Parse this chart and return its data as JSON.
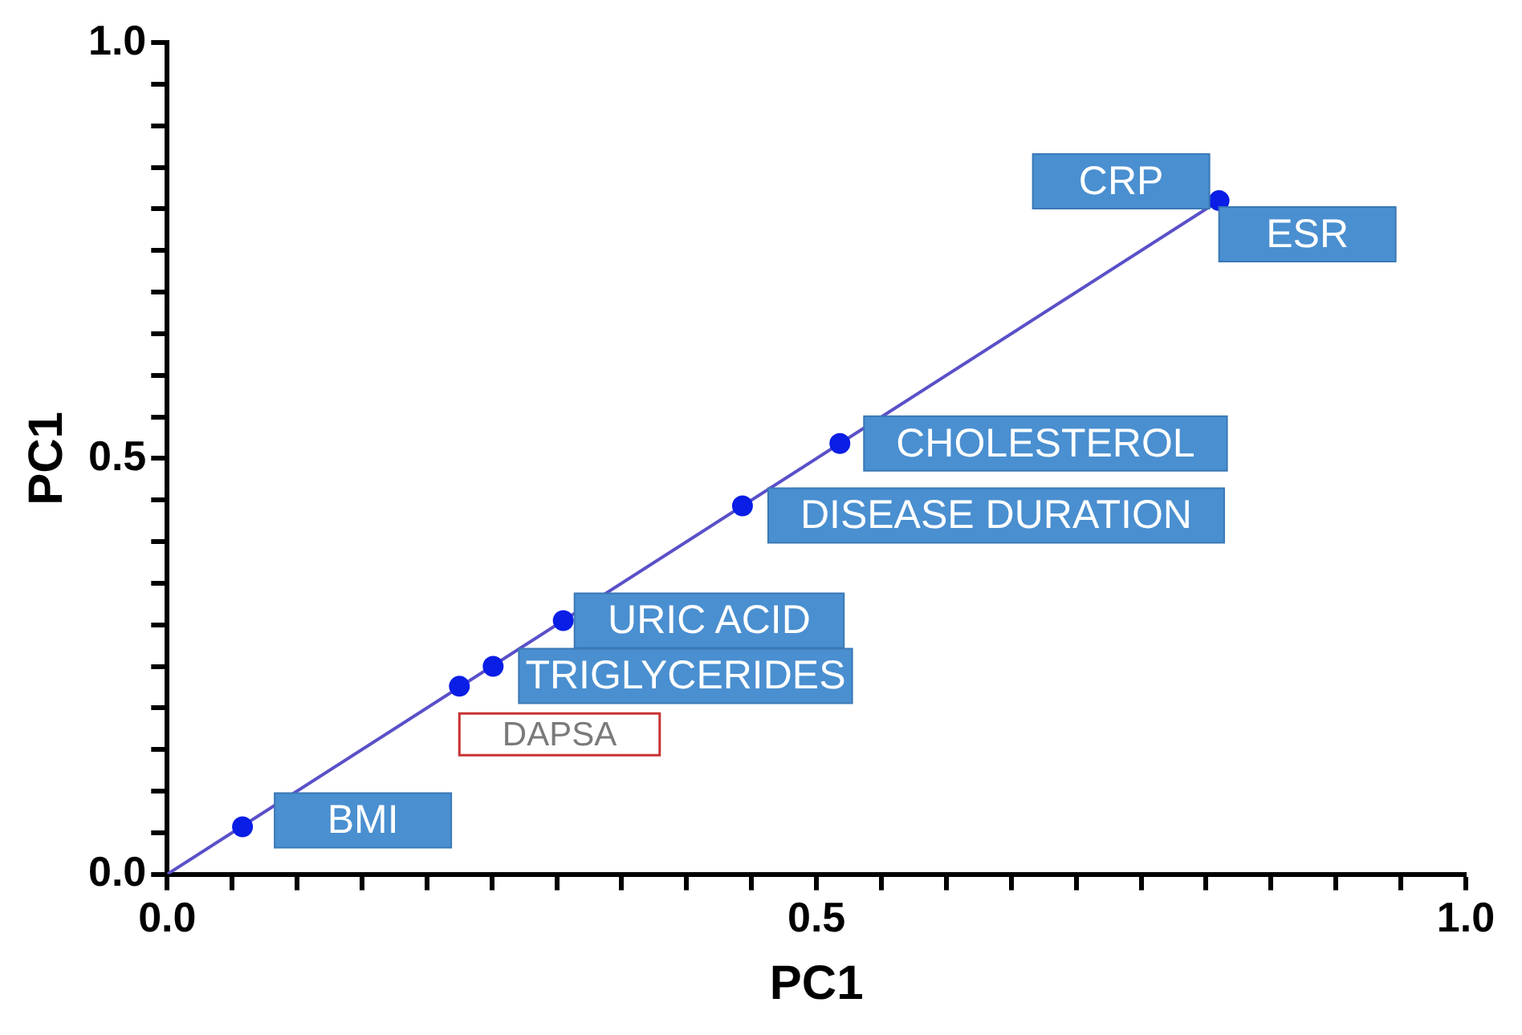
{
  "chart_data": {
    "type": "scatter",
    "xlabel": "PC1",
    "ylabel": "PC1",
    "series": [
      {
        "color": "#0a1ee6",
        "marker": "circle",
        "x": [
          0.058,
          0.225,
          0.251,
          0.305,
          0.443,
          0.518,
          0.81
        ],
        "values": [
          0.057,
          0.226,
          0.25,
          0.305,
          0.443,
          0.518,
          0.81
        ]
      },
      {
        "type": "line",
        "color": "#5a50c8",
        "x": [
          0,
          0.81
        ],
        "values": [
          0,
          0.81
        ]
      }
    ],
    "annotations": [
      {
        "text": "BMI",
        "x": 0.058,
        "y": 0.057
      },
      {
        "text": "DAPSA",
        "x": 0.225,
        "y": 0.226
      },
      {
        "text": "TRIGLYCERIDES",
        "x": 0.251,
        "y": 0.25
      },
      {
        "text": "URIC ACID",
        "x": 0.305,
        "y": 0.305
      },
      {
        "text": "DISEASE DURATION",
        "x": 0.443,
        "y": 0.443
      },
      {
        "text": "CHOLESTEROL",
        "x": 0.518,
        "y": 0.518
      },
      {
        "text": "CRP",
        "x": 0.81,
        "y": 0.81
      },
      {
        "text": "ESR",
        "x": 0.81,
        "y": 0.81
      }
    ],
    "xlim": [
      0,
      1
    ],
    "ylim": [
      0,
      1
    ],
    "xticks": [
      {
        "value": 0,
        "label": "0.0"
      },
      {
        "value": 0.05,
        "label": null
      },
      {
        "value": 0.1,
        "label": null
      },
      {
        "value": 0.15,
        "label": null
      },
      {
        "value": 0.2,
        "label": null
      },
      {
        "value": 0.25,
        "label": null
      },
      {
        "value": 0.3,
        "label": null
      },
      {
        "value": 0.35,
        "label": null
      },
      {
        "value": 0.4,
        "label": null
      },
      {
        "value": 0.45,
        "label": null
      },
      0.5,
      {
        "value": 0.55,
        "label": null
      },
      {
        "value": 0.6,
        "label": null
      },
      {
        "value": 0.65,
        "label": null
      },
      {
        "value": 0.7,
        "label": null
      },
      {
        "value": 0.75,
        "label": null
      },
      {
        "value": 0.8,
        "label": null
      },
      {
        "value": 0.85,
        "label": null
      },
      {
        "value": 0.9,
        "label": null
      },
      {
        "value": 0.95,
        "label": null
      },
      {
        "value": 1,
        "label": "1.0"
      }
    ],
    "yticks": [
      {
        "value": 0,
        "label": "0.0"
      },
      {
        "value": 0.05,
        "label": null
      },
      {
        "value": 0.1,
        "label": null
      },
      {
        "value": 0.15,
        "label": null
      },
      {
        "value": 0.2,
        "label": null
      },
      {
        "value": 0.25,
        "label": null
      },
      {
        "value": 0.3,
        "label": null
      },
      {
        "value": 0.35,
        "label": null
      },
      {
        "value": 0.4,
        "label": null
      },
      {
        "value": 0.45,
        "label": null
      },
      0.5,
      {
        "value": 0.55,
        "label": null
      },
      {
        "value": 0.6,
        "label": null
      },
      {
        "value": 0.65,
        "label": null
      },
      {
        "value": 0.7,
        "label": null
      },
      {
        "value": 0.75,
        "label": null
      },
      {
        "value": 0.8,
        "label": null
      },
      {
        "value": 0.85,
        "label": null
      },
      {
        "value": 0.9,
        "label": null
      },
      {
        "value": 0.95,
        "label": null
      },
      {
        "value": 1,
        "label": "1.0"
      }
    ],
    "grid": false,
    "legend": false
  }
}
